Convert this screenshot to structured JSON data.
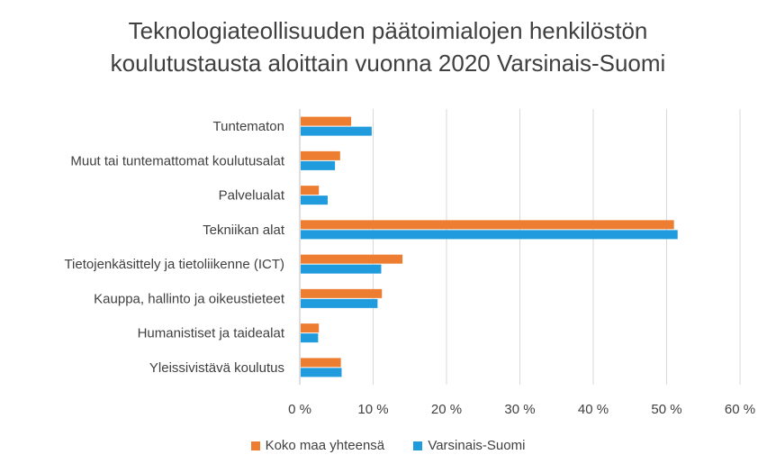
{
  "chart_data": {
    "type": "bar",
    "orientation": "horizontal",
    "title": [
      "Teknologiateollisuuden päätoimialojen henkilöstön",
      "koulutustausta aloittain vuonna 2020 Varsinais-Suomi"
    ],
    "categories": [
      "Tuntematon",
      "Muut tai tuntemattomat koulutusalat",
      "Palvelualat",
      "Tekniikan alat",
      "Tietojenkäsittely ja tietoliikenne (ICT)",
      "Kauppa, hallinto ja oikeustieteet",
      "Humanistiset ja taidealat",
      "Yleissivistävä koulutus"
    ],
    "series": [
      {
        "name": "Koko maa yhteensä",
        "color": "#ED7D31",
        "values": [
          7.0,
          5.5,
          2.6,
          51.0,
          14.0,
          11.2,
          2.6,
          5.6
        ]
      },
      {
        "name": "Varsinais-Suomi",
        "color": "#1F9BDE",
        "values": [
          9.8,
          4.8,
          3.8,
          51.5,
          11.1,
          10.6,
          2.5,
          5.7
        ]
      }
    ],
    "xlim": [
      0,
      60
    ],
    "xticks": [
      0,
      10,
      20,
      30,
      40,
      50,
      60
    ],
    "xtick_labels": [
      "0 %",
      "10 %",
      "20 %",
      "30 %",
      "40 %",
      "50 %",
      "60 %"
    ],
    "grid": true,
    "legend_position": "bottom"
  }
}
